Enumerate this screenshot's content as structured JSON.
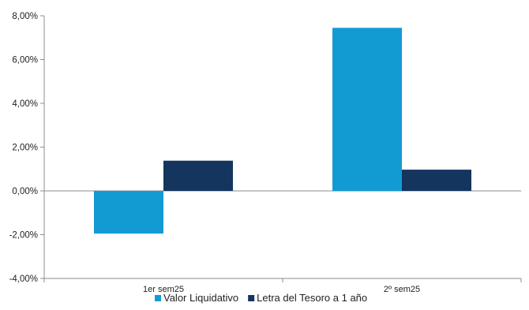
{
  "chart_data": {
    "type": "bar",
    "categories": [
      "1er sem25",
      "2º sem25"
    ],
    "series": [
      {
        "name": "Valor Liquidativo",
        "values": [
          -1.95,
          7.45
        ],
        "color": "#129bd2"
      },
      {
        "name": "Letra del Tesoro a 1 año",
        "values": [
          1.38,
          0.97
        ],
        "color": "#14355e"
      }
    ],
    "ylim": [
      -4,
      8
    ],
    "yticks": [
      -4,
      -2,
      0,
      2,
      4,
      6,
      8
    ],
    "ytick_labels": [
      "-4,00%",
      "-2,00%",
      "0,00%",
      "2,00%",
      "4,00%",
      "6,00%",
      "8,00%"
    ],
    "grid": false,
    "legend_position": "bottom",
    "title": "",
    "xlabel": "",
    "ylabel": ""
  }
}
